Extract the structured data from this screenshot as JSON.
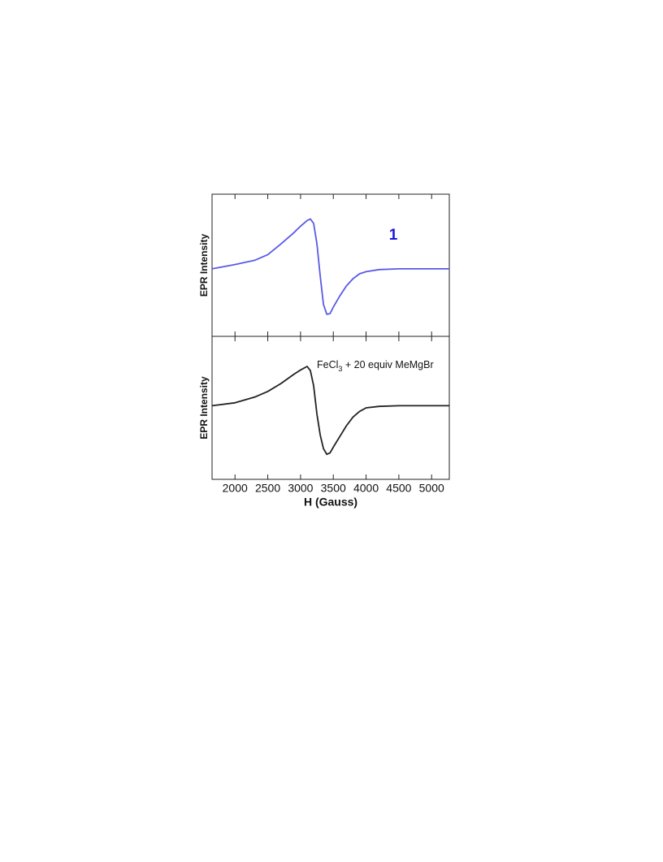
{
  "chart_data": [
    {
      "type": "line",
      "ylabel": "EPR Intensity",
      "annotation": "1",
      "annotation_color": "#1a1ad6",
      "xlim": [
        1650,
        5270
      ],
      "xticks": [
        2000,
        2500,
        3000,
        3500,
        4000,
        4500,
        5000
      ],
      "ylim": [
        -1,
        1
      ],
      "x": [
        1650,
        2000,
        2300,
        2500,
        2700,
        2900,
        3000,
        3100,
        3150,
        3200,
        3250,
        3300,
        3350,
        3400,
        3450,
        3500,
        3600,
        3700,
        3800,
        3900,
        4000,
        4200,
        4500,
        5000,
        5270
      ],
      "values": [
        -0.05,
        0.01,
        0.07,
        0.15,
        0.3,
        0.46,
        0.55,
        0.63,
        0.65,
        0.59,
        0.3,
        -0.15,
        -0.55,
        -0.69,
        -0.68,
        -0.59,
        -0.43,
        -0.29,
        -0.19,
        -0.12,
        -0.09,
        -0.06,
        -0.05,
        -0.05,
        -0.05
      ],
      "color": "#5a5ae6"
    },
    {
      "type": "line",
      "ylabel": "EPR Intensity",
      "xlabel": "H (Gauss)",
      "annotation_parts": [
        "FeCl",
        "3",
        " + 20 equiv MeMgBr"
      ],
      "xlim": [
        1650,
        5270
      ],
      "xticks": [
        2000,
        2500,
        3000,
        3500,
        4000,
        4500,
        5000
      ],
      "ylim": [
        -1,
        1
      ],
      "x": [
        1650,
        2000,
        2300,
        2500,
        2700,
        2900,
        3000,
        3100,
        3150,
        3200,
        3250,
        3300,
        3350,
        3400,
        3450,
        3500,
        3600,
        3700,
        3800,
        3900,
        4000,
        4200,
        4500,
        5000,
        5270
      ],
      "values": [
        0.03,
        0.07,
        0.15,
        0.23,
        0.34,
        0.47,
        0.53,
        0.58,
        0.52,
        0.31,
        -0.09,
        -0.38,
        -0.57,
        -0.65,
        -0.63,
        -0.55,
        -0.4,
        -0.25,
        -0.13,
        -0.05,
        0,
        0.02,
        0.03,
        0.03,
        0.03
      ],
      "color": "#222222",
      "show_xtick_labels": true
    }
  ]
}
